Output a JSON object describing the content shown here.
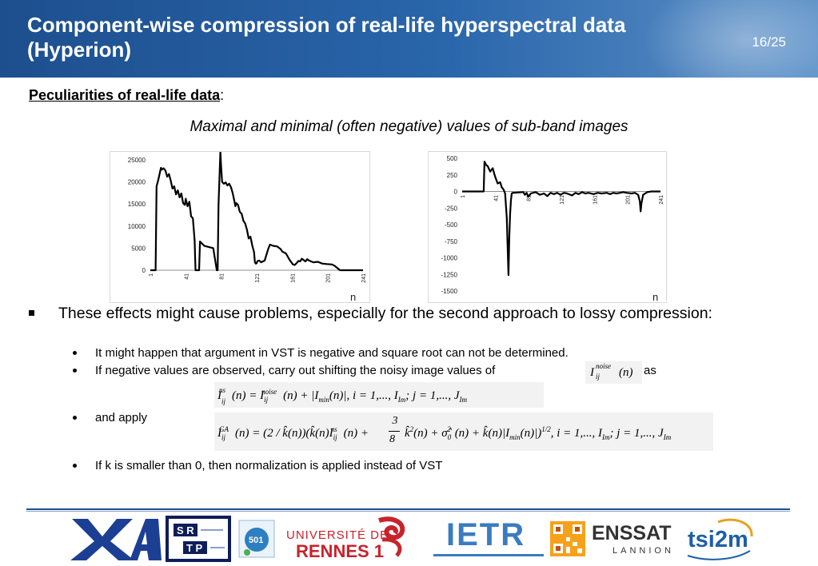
{
  "slide": {
    "title": "Component-wise compression of real-life hyperspectral data (Hyperion)",
    "page_number": "16/25",
    "subtitle": "Peculiarities of real-life data",
    "subtitle_suffix": ":",
    "italic_caption": "Maximal and minimal (often negative) values of sub-band images"
  },
  "bullets": {
    "main": "These effects might cause problems, especially for the second approach to lossy compression:",
    "sub1": "It might happen that argument in VST is negative and square root can not be determined.",
    "sub2": "If negative values are observed, carry out shifting the noisy image values of",
    "sub2_suffix": "as",
    "sub3": "and apply",
    "sub4": "If k is smaller than 0, then normalization is applied instead of VST"
  },
  "equations": {
    "inline": "I_ij^noise(n)",
    "shift": "I_ij^ns(n) = I_ij^noise(n) + |I_min(n)|, i = 1,..., I_Im; j = 1,..., J_Im",
    "vst": "I_ij^GA(n) = (2/k̂(n))(k̂(n)I_ij^ns(n) + 3/8 k̂²(n) + σ̂₀²(n) + k̂(n)|I_min(n)|)^1/2, i = 1,..., I_Im; j = 1,..., J_Im"
  },
  "chart_data": [
    {
      "type": "line",
      "title": "",
      "xlabel": "n",
      "ylabel": "",
      "ylim": [
        0,
        25000
      ],
      "xlim": [
        1,
        241
      ],
      "yticks": [
        "25000",
        "20000",
        "15000",
        "10000",
        "5000",
        "0"
      ],
      "xticks": [
        "1",
        "41",
        "81",
        "121",
        "161",
        "201",
        "241"
      ],
      "series": [
        {
          "x": [
            1,
            7,
            8,
            10,
            13,
            14,
            16,
            18,
            20,
            22,
            24,
            26,
            28,
            30,
            32,
            34,
            36,
            38,
            40,
            41,
            43,
            45,
            47,
            49,
            51,
            52,
            56,
            57,
            62,
            72,
            76,
            77,
            78,
            79,
            80,
            81,
            82,
            84,
            86,
            88,
            90,
            92,
            94,
            96,
            97,
            98,
            100,
            102,
            104,
            106,
            108,
            110,
            112,
            114,
            116,
            118,
            119,
            120,
            121,
            122,
            124,
            126,
            130,
            134,
            136,
            140,
            144,
            148,
            150,
            154,
            158,
            162,
            164,
            166,
            168,
            170,
            172,
            174,
            176,
            178,
            180,
            185,
            190,
            195,
            200,
            206,
            209,
            215,
            220,
            230,
            241
          ],
          "y": [
            0,
            0,
            19000,
            20500,
            23200,
            22800,
            23100,
            22600,
            21200,
            21800,
            20300,
            18500,
            19000,
            17200,
            18100,
            16500,
            17400,
            15200,
            14800,
            16200,
            14500,
            15500,
            12200,
            11800,
            6800,
            0,
            0,
            6500,
            5500,
            5000,
            0,
            0,
            15000,
            20500,
            26800,
            23000,
            20000,
            19600,
            19900,
            19200,
            19600,
            18800,
            17400,
            15500,
            14500,
            15200,
            14800,
            13200,
            12800,
            11200,
            10600,
            9200,
            7200,
            7600,
            5600,
            4100,
            1800,
            1500,
            1600,
            2100,
            2200,
            1800,
            2200,
            4800,
            5800,
            5500,
            5400,
            4800,
            4200,
            3800,
            2400,
            1300,
            1200,
            1600,
            2100,
            2000,
            2600,
            2300,
            2000,
            2500,
            2200,
            1800,
            1900,
            1500,
            1400,
            1300,
            1000,
            0,
            0,
            0,
            0
          ]
        }
      ]
    },
    {
      "type": "line",
      "title": "",
      "xlabel": "n",
      "ylabel": "",
      "ylim": [
        -1500,
        500
      ],
      "xlim": [
        1,
        241
      ],
      "yticks": [
        "500",
        "250",
        "0",
        "-250",
        "-500",
        "-750",
        "-1000",
        "-1250",
        "-1500"
      ],
      "xticks": [
        "1",
        "41",
        "81",
        "121",
        "161",
        "201",
        "241"
      ],
      "series": [
        {
          "x": [
            1,
            20,
            27,
            28,
            30,
            32,
            35,
            38,
            40,
            41,
            44,
            47,
            49,
            51,
            53,
            55,
            57,
            58,
            59,
            60,
            61,
            62,
            64,
            70,
            75,
            77,
            79,
            81,
            84,
            90,
            95,
            100,
            104,
            108,
            112,
            116,
            120,
            124,
            128,
            134,
            138,
            142,
            146,
            150,
            154,
            160,
            165,
            170,
            176,
            180,
            184,
            188,
            192,
            196,
            200,
            206,
            210,
            214,
            216,
            217,
            218,
            220,
            225,
            230,
            241
          ],
          "y": [
            0,
            0,
            0,
            450,
            400,
            380,
            300,
            350,
            260,
            220,
            120,
            140,
            60,
            30,
            -30,
            -400,
            -1260,
            -700,
            -350,
            -130,
            -30,
            -20,
            -20,
            -15,
            -10,
            -50,
            -20,
            -80,
            -30,
            -10,
            -50,
            -30,
            -70,
            -20,
            -40,
            -20,
            -50,
            -20,
            -30,
            -60,
            -20,
            -40,
            -10,
            -30,
            -20,
            -40,
            -20,
            -30,
            -20,
            -40,
            -20,
            -30,
            -20,
            -10,
            -20,
            -30,
            -20,
            -50,
            -150,
            -300,
            -180,
            -50,
            -10,
            0,
            0
          ]
        }
      ]
    }
  ],
  "logos": {
    "xai": "XAI",
    "srtp": "SRTP",
    "universite_line1": "UNIVERSITÉ DE",
    "universite_line2": "RENNES 1",
    "ietr": "IETR",
    "enssat_line1": "ENSSAT",
    "enssat_line2": "LANNION",
    "tsi2m": "tsi2m"
  },
  "colors": {
    "header": "#2a66ab",
    "rule": "#1d4f8e",
    "univ_red": "#c8232c",
    "ietr_blue": "#3a7cc1",
    "tsi_blue": "#1d5fa8"
  }
}
